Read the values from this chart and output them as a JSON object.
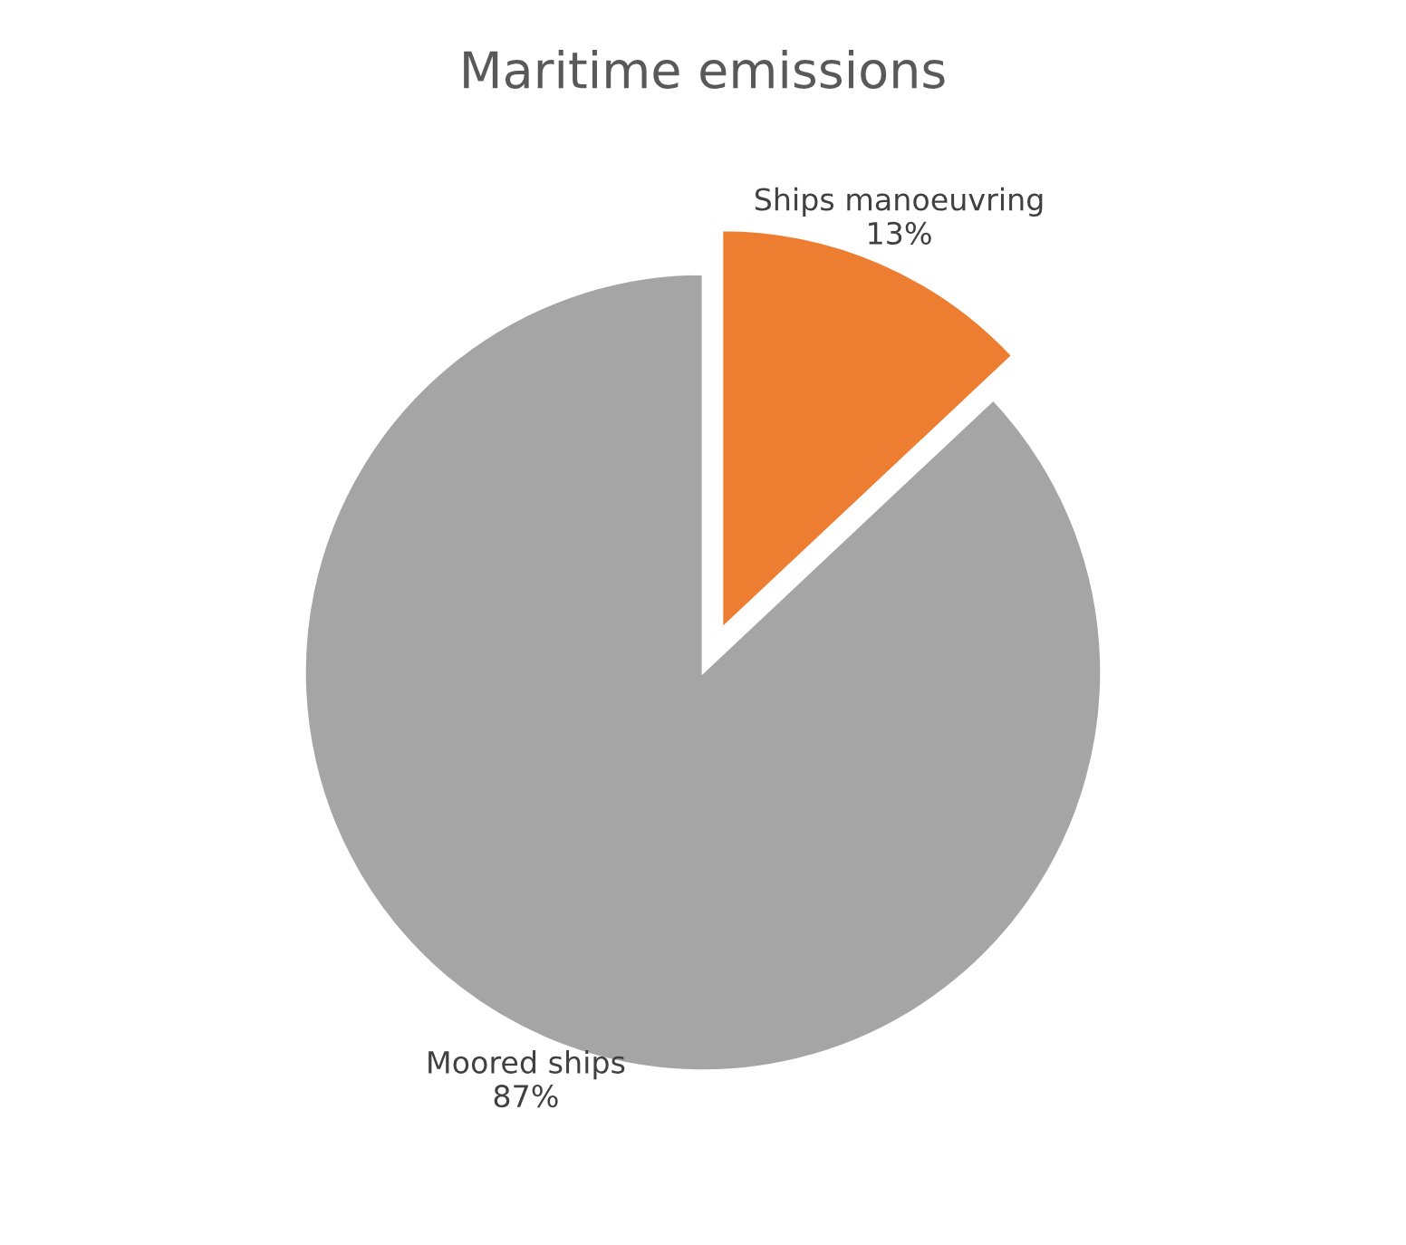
{
  "chart_data": {
    "type": "pie",
    "title": "Maritime emissions",
    "categories": [
      "Ships manoeuvring",
      "Moored ships"
    ],
    "values": [
      13,
      87
    ],
    "value_labels": [
      "13%",
      "87%"
    ],
    "colors": [
      "#ed7d31",
      "#a5a5a5"
    ],
    "legend": false
  }
}
